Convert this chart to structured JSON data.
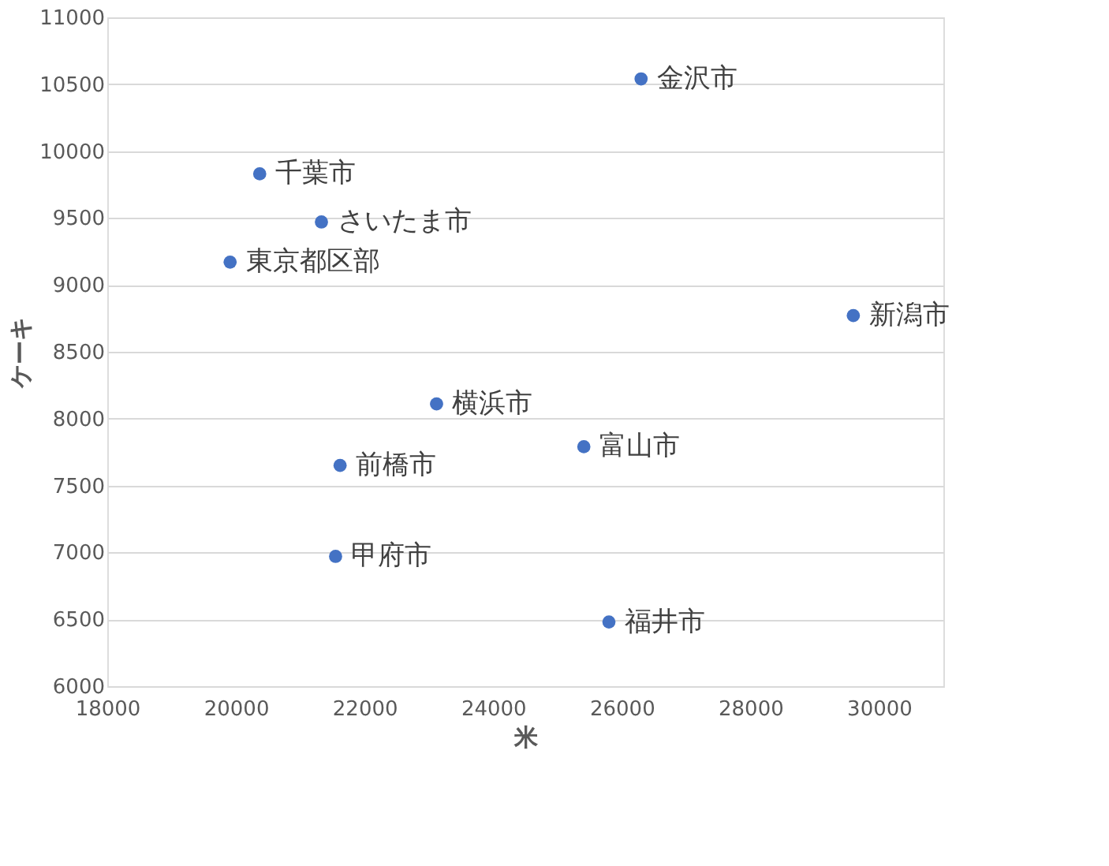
{
  "chart_data": {
    "type": "scatter",
    "xlabel": "米",
    "ylabel": "ケーキ",
    "x": [
      26300,
      20370,
      21330,
      19910,
      29600,
      23120,
      21620,
      21550,
      25410,
      25800
    ],
    "series": [
      {
        "color": "#4472c4",
        "values": [
          10540,
          9830,
          9470,
          9170,
          8770,
          8110,
          7650,
          6970,
          7790,
          6480
        ]
      }
    ],
    "annotations": [
      {
        "text": "金沢市",
        "x": 26300,
        "y": 10540
      },
      {
        "text": "千葉市",
        "x": 20370,
        "y": 9830
      },
      {
        "text": "さいたま市",
        "x": 21330,
        "y": 9470
      },
      {
        "text": "東京都区部",
        "x": 19910,
        "y": 9170
      },
      {
        "text": "新潟市",
        "x": 29600,
        "y": 8770
      },
      {
        "text": "横浜市",
        "x": 23120,
        "y": 8110
      },
      {
        "text": "前橋市",
        "x": 21620,
        "y": 7650
      },
      {
        "text": "甲府市",
        "x": 21550,
        "y": 6970
      },
      {
        "text": "富山市",
        "x": 25410,
        "y": 7790
      },
      {
        "text": "福井市",
        "x": 25800,
        "y": 6480
      }
    ],
    "xlim": [
      18000,
      31000
    ],
    "xticks": [
      18000,
      20000,
      22000,
      24000,
      26000,
      28000,
      30000
    ],
    "ylim": [
      6000,
      11000
    ],
    "yticks": [
      6000,
      6500,
      7000,
      7500,
      8000,
      8500,
      9000,
      9500,
      10000,
      10500,
      11000
    ],
    "grid": "y",
    "marker": "circle"
  }
}
